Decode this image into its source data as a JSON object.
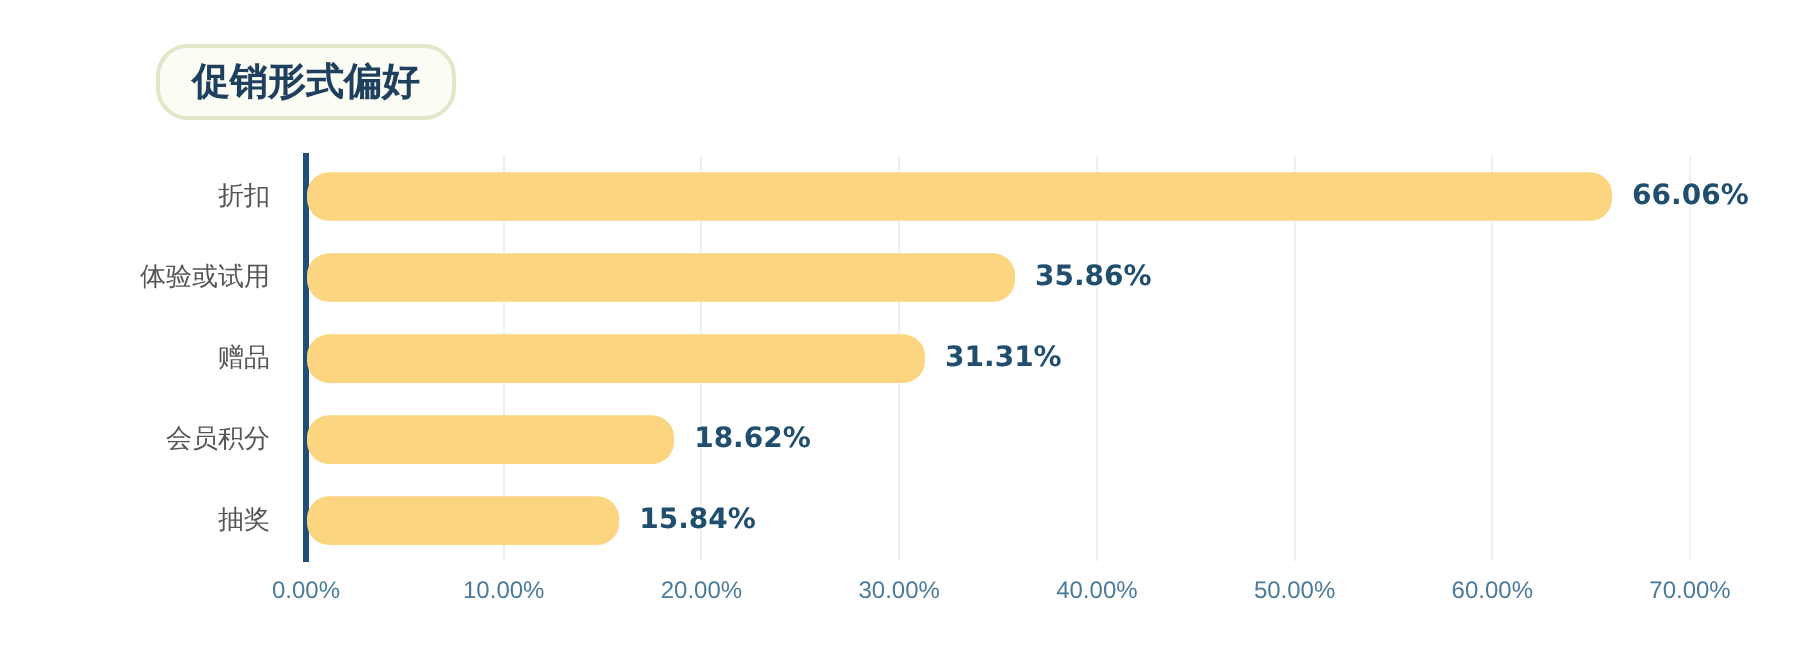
{
  "chart_data": {
    "type": "bar",
    "orientation": "horizontal",
    "title": "促销形式偏好",
    "categories": [
      "折扣",
      "体验或试用",
      "赠品",
      "会员积分",
      "抽奖"
    ],
    "values": [
      66.06,
      35.86,
      31.31,
      18.62,
      15.84
    ],
    "value_labels": [
      "66.06%",
      "35.86%",
      "31.31%",
      "18.62%",
      "15.84%"
    ],
    "color": "#fbd57f",
    "xlim": [
      0,
      70
    ],
    "xticks": [
      {
        "value": 0,
        "label": "0.00%"
      },
      {
        "value": 10,
        "label": "10.00%"
      },
      {
        "value": 20,
        "label": "20.00%"
      },
      {
        "value": 30,
        "label": "30.00%"
      },
      {
        "value": 40,
        "label": "40.00%"
      },
      {
        "value": 50,
        "label": "50.00%"
      },
      {
        "value": 60,
        "label": "60.00%"
      },
      {
        "value": 70,
        "label": "70.00%"
      }
    ],
    "grid": "x",
    "legend": false
  }
}
